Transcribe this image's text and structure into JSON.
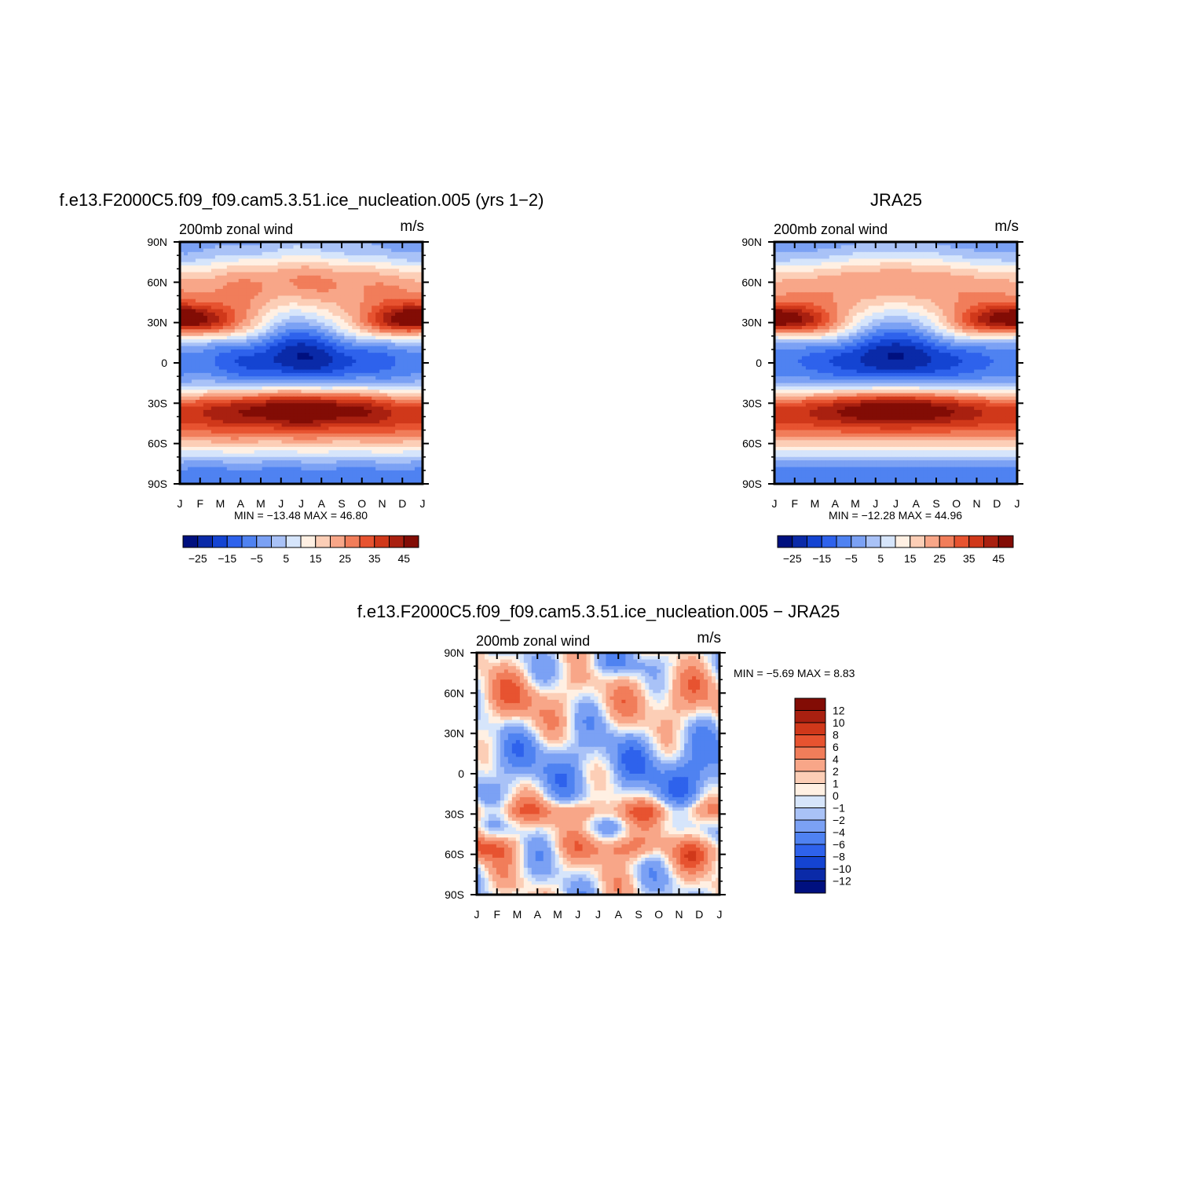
{
  "chart_data": [
    {
      "type": "heatmap",
      "title": "f.e13.F2000C5.f09_f09.cam5.3.51.ice_nucleation.005 (yrs 1−2)",
      "subtitle": "200mb zonal wind",
      "units": "m/s",
      "x_tick_labels": [
        "J",
        "F",
        "M",
        "A",
        "M",
        "J",
        "J",
        "A",
        "S",
        "O",
        "N",
        "D",
        "J"
      ],
      "y_tick_labels": [
        "90N",
        "60N",
        "30N",
        "0",
        "30S",
        "60S",
        "90S"
      ],
      "x_range": [
        0,
        12
      ],
      "y_range": [
        -90,
        90
      ],
      "stats_label": "MIN = −13.48 MAX = 46.80",
      "min": -13.48,
      "max": 46.8,
      "colorbar_orientation": "horizontal",
      "levels": [
        -30,
        -25,
        -20,
        -15,
        -10,
        -5,
        0,
        5,
        10,
        15,
        20,
        25,
        30,
        35,
        40,
        45
      ],
      "colorbar_labels": [
        "−25",
        "−15",
        "−5",
        "5",
        "15",
        "25",
        "35",
        "45"
      ],
      "colors": [
        "#00107f",
        "#0a2aa8",
        "#1444d2",
        "#2e62ec",
        "#4f82f1",
        "#7ba1f4",
        "#a9c2f7",
        "#d6e5fb",
        "#fff0e3",
        "#fcceb6",
        "#f8a688",
        "#f17d5a",
        "#e75330",
        "#d0381a",
        "#a92010",
        "#820c05"
      ]
    },
    {
      "type": "heatmap",
      "title": "JRA25",
      "subtitle": "200mb zonal wind",
      "units": "m/s",
      "x_tick_labels": [
        "J",
        "F",
        "M",
        "A",
        "M",
        "J",
        "J",
        "A",
        "S",
        "O",
        "N",
        "D",
        "J"
      ],
      "y_tick_labels": [
        "90N",
        "60N",
        "30N",
        "0",
        "30S",
        "60S",
        "90S"
      ],
      "x_range": [
        0,
        12
      ],
      "y_range": [
        -90,
        90
      ],
      "stats_label": "MIN = −12.28 MAX = 44.96",
      "min": -12.28,
      "max": 44.96,
      "colorbar_orientation": "horizontal",
      "levels": [
        -30,
        -25,
        -20,
        -15,
        -10,
        -5,
        0,
        5,
        10,
        15,
        20,
        25,
        30,
        35,
        40,
        45
      ],
      "colorbar_labels": [
        "−25",
        "−15",
        "−5",
        "5",
        "15",
        "25",
        "35",
        "45"
      ],
      "colors": [
        "#00107f",
        "#0a2aa8",
        "#1444d2",
        "#2e62ec",
        "#4f82f1",
        "#7ba1f4",
        "#a9c2f7",
        "#d6e5fb",
        "#fff0e3",
        "#fcceb6",
        "#f8a688",
        "#f17d5a",
        "#e75330",
        "#d0381a",
        "#a92010",
        "#820c05"
      ]
    },
    {
      "type": "heatmap",
      "title": "f.e13.F2000C5.f09_f09.cam5.3.51.ice_nucleation.005 − JRA25",
      "subtitle": "200mb zonal wind",
      "units": "m/s",
      "x_tick_labels": [
        "J",
        "F",
        "M",
        "A",
        "M",
        "J",
        "J",
        "A",
        "S",
        "O",
        "N",
        "D",
        "J"
      ],
      "y_tick_labels": [
        "90N",
        "60N",
        "30N",
        "0",
        "30S",
        "60S",
        "90S"
      ],
      "x_range": [
        0,
        12
      ],
      "y_range": [
        -90,
        90
      ],
      "stats_label": "MIN = −5.69 MAX = 8.83",
      "min": -5.69,
      "max": 8.83,
      "colorbar_orientation": "vertical",
      "levels": [
        12,
        10,
        8,
        6,
        4,
        2,
        1,
        0,
        -1,
        -2,
        -4,
        -6,
        -8,
        -10,
        -12
      ],
      "colorbar_labels": [
        "12",
        "10",
        "8",
        "6",
        "4",
        "2",
        "1",
        "0",
        "−1",
        "−2",
        "−4",
        "−6",
        "−8",
        "−10",
        "−12"
      ],
      "colors": [
        "#820c05",
        "#a92010",
        "#d0381a",
        "#e75330",
        "#f17d5a",
        "#f8a688",
        "#fcceb6",
        "#fff0e3",
        "#d6e5fb",
        "#a9c2f7",
        "#7ba1f4",
        "#4f82f1",
        "#2e62ec",
        "#1444d2",
        "#0a2aa8",
        "#00107f"
      ]
    }
  ]
}
